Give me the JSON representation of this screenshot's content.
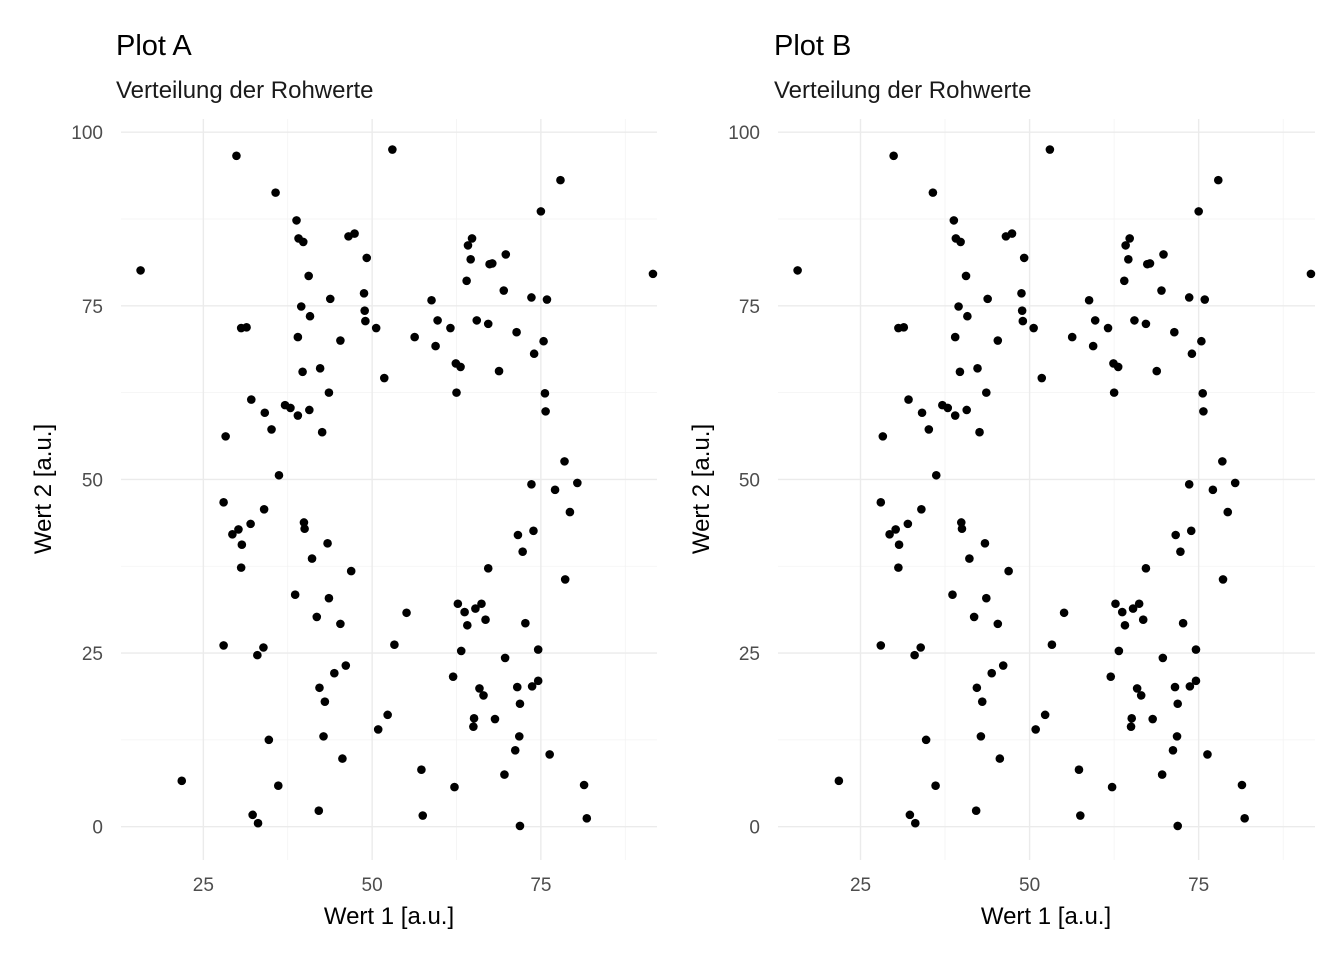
{
  "chart_data": [
    {
      "type": "scatter",
      "title": "Plot A",
      "subtitle": "Verteilung der Rohwerte",
      "xlabel": "Wert 1  [a.u.]",
      "ylabel": "Wert 2 [a.u.]",
      "xlim": [
        12.8,
        92.2
      ],
      "ylim": [
        -4.8,
        101.9
      ],
      "xticks": [
        25,
        50,
        75
      ],
      "yticks": [
        0,
        25,
        50,
        75,
        100
      ],
      "grid": true,
      "legend": "none",
      "point_color": "#000000",
      "points": [
        [
          15.7,
          80.1
        ],
        [
          21.8,
          6.6
        ],
        [
          28.3,
          56.2
        ],
        [
          28.0,
          46.7
        ],
        [
          28.0,
          26.1
        ],
        [
          29.3,
          42.1
        ],
        [
          29.9,
          96.6
        ],
        [
          30.2,
          42.8
        ],
        [
          30.6,
          71.8
        ],
        [
          30.7,
          40.6
        ],
        [
          30.6,
          37.3
        ],
        [
          31.4,
          71.9
        ],
        [
          32.0,
          43.6
        ],
        [
          32.1,
          61.5
        ],
        [
          32.3,
          1.7
        ],
        [
          33.0,
          24.7
        ],
        [
          33.1,
          0.5
        ],
        [
          33.9,
          25.8
        ],
        [
          34.0,
          45.7
        ],
        [
          34.1,
          59.6
        ],
        [
          34.7,
          12.5
        ],
        [
          35.1,
          57.2
        ],
        [
          35.7,
          91.3
        ],
        [
          36.1,
          5.9
        ],
        [
          36.2,
          50.6
        ],
        [
          37.1,
          60.7
        ],
        [
          37.9,
          60.3
        ],
        [
          38.6,
          33.4
        ],
        [
          38.8,
          87.3
        ],
        [
          39.0,
          70.5
        ],
        [
          39.0,
          59.2
        ],
        [
          39.1,
          84.7
        ],
        [
          39.5,
          74.9
        ],
        [
          39.8,
          84.2
        ],
        [
          39.9,
          43.8
        ],
        [
          40.0,
          42.9
        ],
        [
          39.7,
          65.5
        ],
        [
          40.7,
          60.0
        ],
        [
          40.6,
          79.3
        ],
        [
          40.8,
          73.5
        ],
        [
          41.1,
          38.6
        ],
        [
          41.8,
          30.2
        ],
        [
          42.1,
          2.3
        ],
        [
          42.2,
          20.0
        ],
        [
          42.3,
          66.0
        ],
        [
          42.6,
          56.8
        ],
        [
          42.8,
          13.0
        ],
        [
          43.0,
          18.0
        ],
        [
          43.4,
          40.8
        ],
        [
          43.6,
          32.9
        ],
        [
          43.6,
          62.5
        ],
        [
          43.8,
          76.0
        ],
        [
          44.4,
          22.1
        ],
        [
          45.3,
          29.2
        ],
        [
          45.3,
          70.0
        ],
        [
          45.6,
          9.8
        ],
        [
          46.1,
          23.2
        ],
        [
          46.5,
          85.0
        ],
        [
          46.9,
          36.8
        ],
        [
          47.4,
          85.4
        ],
        [
          48.8,
          76.8
        ],
        [
          48.9,
          74.3
        ],
        [
          49.0,
          72.8
        ],
        [
          49.2,
          81.9
        ],
        [
          50.6,
          71.8
        ],
        [
          50.9,
          14.0
        ],
        [
          51.8,
          64.6
        ],
        [
          52.3,
          16.1
        ],
        [
          53.0,
          97.5
        ],
        [
          53.3,
          26.2
        ],
        [
          55.1,
          30.8
        ],
        [
          56.3,
          70.5
        ],
        [
          57.3,
          8.2
        ],
        [
          57.5,
          1.6
        ],
        [
          58.8,
          75.8
        ],
        [
          59.4,
          69.2
        ],
        [
          59.7,
          72.9
        ],
        [
          61.6,
          71.8
        ],
        [
          62.0,
          21.6
        ],
        [
          62.2,
          5.7
        ],
        [
          62.4,
          66.7
        ],
        [
          62.5,
          62.5
        ],
        [
          62.7,
          32.1
        ],
        [
          63.1,
          66.2
        ],
        [
          63.2,
          25.3
        ],
        [
          63.7,
          30.9
        ],
        [
          64.0,
          78.6
        ],
        [
          64.1,
          29.0
        ],
        [
          64.2,
          83.7
        ],
        [
          64.6,
          81.7
        ],
        [
          64.8,
          84.7
        ],
        [
          65.0,
          14.4
        ],
        [
          65.1,
          15.6
        ],
        [
          65.3,
          31.4
        ],
        [
          65.5,
          72.9
        ],
        [
          65.9,
          19.9
        ],
        [
          66.2,
          32.1
        ],
        [
          66.5,
          18.9
        ],
        [
          66.8,
          29.8
        ],
        [
          67.2,
          37.2
        ],
        [
          67.2,
          72.4
        ],
        [
          67.4,
          81.0
        ],
        [
          67.8,
          81.1
        ],
        [
          68.2,
          15.5
        ],
        [
          68.8,
          65.6
        ],
        [
          69.5,
          77.2
        ],
        [
          69.6,
          7.5
        ],
        [
          69.7,
          24.3
        ],
        [
          69.8,
          82.4
        ],
        [
          71.2,
          11.0
        ],
        [
          71.4,
          71.2
        ],
        [
          71.5,
          20.1
        ],
        [
          71.6,
          42.0
        ],
        [
          71.8,
          13.0
        ],
        [
          71.9,
          17.7
        ],
        [
          71.9,
          0.1
        ],
        [
          72.3,
          39.6
        ],
        [
          72.7,
          29.3
        ],
        [
          73.6,
          76.2
        ],
        [
          73.6,
          49.3
        ],
        [
          73.7,
          20.2
        ],
        [
          73.9,
          42.6
        ],
        [
          74.0,
          68.1
        ],
        [
          74.6,
          21.0
        ],
        [
          74.6,
          25.5
        ],
        [
          75.0,
          88.6
        ],
        [
          75.4,
          69.9
        ],
        [
          75.6,
          62.4
        ],
        [
          75.7,
          59.8
        ],
        [
          75.9,
          75.9
        ],
        [
          76.3,
          10.4
        ],
        [
          77.1,
          48.5
        ],
        [
          77.9,
          93.1
        ],
        [
          78.5,
          52.6
        ],
        [
          78.6,
          35.6
        ],
        [
          79.3,
          45.3
        ],
        [
          80.4,
          49.5
        ],
        [
          81.4,
          6.0
        ],
        [
          81.8,
          1.2
        ],
        [
          91.6,
          79.6
        ]
      ]
    },
    {
      "type": "scatter",
      "title": "Plot B",
      "subtitle": "Verteilung der Rohwerte",
      "xlabel": "Wert 1  [a.u.]",
      "ylabel": "Wert 2 [a.u.]",
      "xlim": [
        12.8,
        92.2
      ],
      "ylim": [
        -4.8,
        101.9
      ],
      "xticks": [
        25,
        50,
        75
      ],
      "yticks": [
        0,
        25,
        50,
        75,
        100
      ],
      "grid": true,
      "legend": "none",
      "point_color": "#000000",
      "points": [
        [
          15.7,
          80.1
        ],
        [
          21.8,
          6.6
        ],
        [
          28.3,
          56.2
        ],
        [
          28.0,
          46.7
        ],
        [
          28.0,
          26.1
        ],
        [
          29.3,
          42.1
        ],
        [
          29.9,
          96.6
        ],
        [
          30.2,
          42.8
        ],
        [
          30.6,
          71.8
        ],
        [
          30.7,
          40.6
        ],
        [
          30.6,
          37.3
        ],
        [
          31.4,
          71.9
        ],
        [
          32.0,
          43.6
        ],
        [
          32.1,
          61.5
        ],
        [
          32.3,
          1.7
        ],
        [
          33.0,
          24.7
        ],
        [
          33.1,
          0.5
        ],
        [
          33.9,
          25.8
        ],
        [
          34.0,
          45.7
        ],
        [
          34.1,
          59.6
        ],
        [
          34.7,
          12.5
        ],
        [
          35.1,
          57.2
        ],
        [
          35.7,
          91.3
        ],
        [
          36.1,
          5.9
        ],
        [
          36.2,
          50.6
        ],
        [
          37.1,
          60.7
        ],
        [
          37.9,
          60.3
        ],
        [
          38.6,
          33.4
        ],
        [
          38.8,
          87.3
        ],
        [
          39.0,
          70.5
        ],
        [
          39.0,
          59.2
        ],
        [
          39.1,
          84.7
        ],
        [
          39.5,
          74.9
        ],
        [
          39.8,
          84.2
        ],
        [
          39.9,
          43.8
        ],
        [
          40.0,
          42.9
        ],
        [
          39.7,
          65.5
        ],
        [
          40.7,
          60.0
        ],
        [
          40.6,
          79.3
        ],
        [
          40.8,
          73.5
        ],
        [
          41.1,
          38.6
        ],
        [
          41.8,
          30.2
        ],
        [
          42.1,
          2.3
        ],
        [
          42.2,
          20.0
        ],
        [
          42.3,
          66.0
        ],
        [
          42.6,
          56.8
        ],
        [
          42.8,
          13.0
        ],
        [
          43.0,
          18.0
        ],
        [
          43.4,
          40.8
        ],
        [
          43.6,
          32.9
        ],
        [
          43.6,
          62.5
        ],
        [
          43.8,
          76.0
        ],
        [
          44.4,
          22.1
        ],
        [
          45.3,
          29.2
        ],
        [
          45.3,
          70.0
        ],
        [
          45.6,
          9.8
        ],
        [
          46.1,
          23.2
        ],
        [
          46.5,
          85.0
        ],
        [
          46.9,
          36.8
        ],
        [
          47.4,
          85.4
        ],
        [
          48.8,
          76.8
        ],
        [
          48.9,
          74.3
        ],
        [
          49.0,
          72.8
        ],
        [
          49.2,
          81.9
        ],
        [
          50.6,
          71.8
        ],
        [
          50.9,
          14.0
        ],
        [
          51.8,
          64.6
        ],
        [
          52.3,
          16.1
        ],
        [
          53.0,
          97.5
        ],
        [
          53.3,
          26.2
        ],
        [
          55.1,
          30.8
        ],
        [
          56.3,
          70.5
        ],
        [
          57.3,
          8.2
        ],
        [
          57.5,
          1.6
        ],
        [
          58.8,
          75.8
        ],
        [
          59.4,
          69.2
        ],
        [
          59.7,
          72.9
        ],
        [
          61.6,
          71.8
        ],
        [
          62.0,
          21.6
        ],
        [
          62.2,
          5.7
        ],
        [
          62.4,
          66.7
        ],
        [
          62.5,
          62.5
        ],
        [
          62.7,
          32.1
        ],
        [
          63.1,
          66.2
        ],
        [
          63.2,
          25.3
        ],
        [
          63.7,
          30.9
        ],
        [
          64.0,
          78.6
        ],
        [
          64.1,
          29.0
        ],
        [
          64.2,
          83.7
        ],
        [
          64.6,
          81.7
        ],
        [
          64.8,
          84.7
        ],
        [
          65.0,
          14.4
        ],
        [
          65.1,
          15.6
        ],
        [
          65.3,
          31.4
        ],
        [
          65.5,
          72.9
        ],
        [
          65.9,
          19.9
        ],
        [
          66.2,
          32.1
        ],
        [
          66.5,
          18.9
        ],
        [
          66.8,
          29.8
        ],
        [
          67.2,
          37.2
        ],
        [
          67.2,
          72.4
        ],
        [
          67.4,
          81.0
        ],
        [
          67.8,
          81.1
        ],
        [
          68.2,
          15.5
        ],
        [
          68.8,
          65.6
        ],
        [
          69.5,
          77.2
        ],
        [
          69.6,
          7.5
        ],
        [
          69.7,
          24.3
        ],
        [
          69.8,
          82.4
        ],
        [
          71.2,
          11.0
        ],
        [
          71.4,
          71.2
        ],
        [
          71.5,
          20.1
        ],
        [
          71.6,
          42.0
        ],
        [
          71.8,
          13.0
        ],
        [
          71.9,
          17.7
        ],
        [
          71.9,
          0.1
        ],
        [
          72.3,
          39.6
        ],
        [
          72.7,
          29.3
        ],
        [
          73.6,
          76.2
        ],
        [
          73.6,
          49.3
        ],
        [
          73.7,
          20.2
        ],
        [
          73.9,
          42.6
        ],
        [
          74.0,
          68.1
        ],
        [
          74.6,
          21.0
        ],
        [
          74.6,
          25.5
        ],
        [
          75.0,
          88.6
        ],
        [
          75.4,
          69.9
        ],
        [
          75.6,
          62.4
        ],
        [
          75.7,
          59.8
        ],
        [
          75.9,
          75.9
        ],
        [
          76.3,
          10.4
        ],
        [
          77.1,
          48.5
        ],
        [
          77.9,
          93.1
        ],
        [
          78.5,
          52.6
        ],
        [
          78.6,
          35.6
        ],
        [
          79.3,
          45.3
        ],
        [
          80.4,
          49.5
        ],
        [
          81.4,
          6.0
        ],
        [
          81.8,
          1.2
        ],
        [
          91.6,
          79.6
        ]
      ]
    }
  ]
}
